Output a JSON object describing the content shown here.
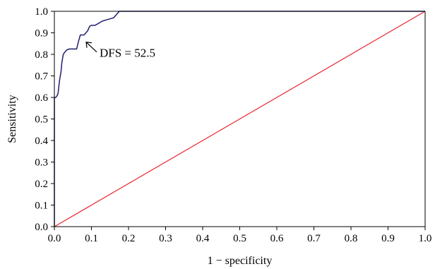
{
  "chart_data": {
    "type": "line",
    "title": "",
    "xlabel": "1 − specificity",
    "ylabel": "Sensitivity",
    "xlim": [
      0,
      1
    ],
    "ylim": [
      0,
      1
    ],
    "x_ticks": [
      "0.0",
      "0.1",
      "0.2",
      "0.3",
      "0.4",
      "0.5",
      "0.6",
      "0.7",
      "0.8",
      "0.9",
      "1.0"
    ],
    "y_ticks": [
      "0.0",
      "0.1",
      "0.2",
      "0.3",
      "0.4",
      "0.5",
      "0.6",
      "0.7",
      "0.8",
      "0.9",
      "1.0"
    ],
    "grid": false,
    "legend": "none",
    "series": [
      {
        "color": "#1f1f6e",
        "x": [
          0,
          0,
          0.004,
          0.008,
          0.01,
          0.014,
          0.018,
          0.02,
          0.024,
          0.028,
          0.033,
          0.04,
          0.06,
          0.065,
          0.07,
          0.08,
          0.09,
          0.095,
          0.1,
          0.11,
          0.13,
          0.14,
          0.15,
          0.16,
          0.165,
          0.17,
          0.175,
          1.0
        ],
        "y": [
          0,
          0.6,
          0.6,
          0.61,
          0.62,
          0.68,
          0.72,
          0.76,
          0.8,
          0.81,
          0.82,
          0.825,
          0.825,
          0.86,
          0.89,
          0.89,
          0.91,
          0.93,
          0.935,
          0.935,
          0.955,
          0.96,
          0.965,
          0.97,
          0.98,
          0.99,
          1.0,
          1.0
        ]
      },
      {
        "color": "#e8262c",
        "x": [
          0,
          1
        ],
        "y": [
          0,
          1
        ]
      }
    ],
    "annotations": [
      {
        "text": "DFS = 52.5",
        "x": 0.08,
        "y": 0.87
      }
    ]
  }
}
